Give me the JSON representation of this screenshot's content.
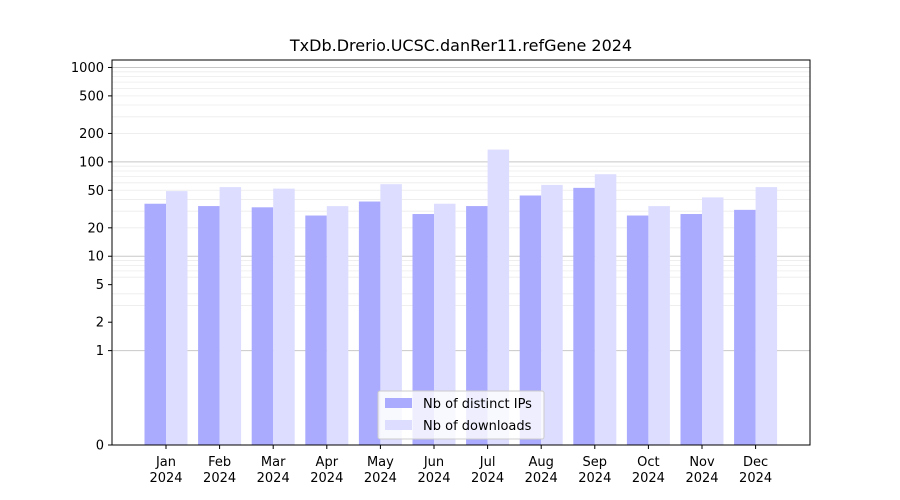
{
  "chart_data": {
    "type": "bar",
    "title": "TxDb.Drerio.UCSC.danRer11.refGene 2024",
    "xlabel": "",
    "ylabel": "",
    "yscale": "symlog",
    "ylim": [
      0,
      1200
    ],
    "yticks": [
      0,
      1,
      2,
      5,
      10,
      20,
      50,
      100,
      200,
      500,
      1000
    ],
    "ytick_labels": [
      "0",
      "1",
      "2",
      "5",
      "10",
      "20",
      "50",
      "100",
      "200",
      "500",
      "1000"
    ],
    "grid": true,
    "legend_position": "bottom-center",
    "categories": [
      "Jan",
      "Feb",
      "Mar",
      "Apr",
      "May",
      "Jun",
      "Jul",
      "Aug",
      "Sep",
      "Oct",
      "Nov",
      "Dec"
    ],
    "category_years": [
      "2024",
      "2024",
      "2024",
      "2024",
      "2024",
      "2024",
      "2024",
      "2024",
      "2024",
      "2024",
      "2024",
      "2024"
    ],
    "series": [
      {
        "name": "Nb of distinct IPs",
        "color": "#aaaaff",
        "values": [
          36,
          34,
          33,
          27,
          38,
          28,
          34,
          44,
          53,
          27,
          28,
          31
        ]
      },
      {
        "name": "Nb of downloads",
        "color": "#ddddff",
        "values": [
          49,
          54,
          52,
          34,
          58,
          36,
          135,
          57,
          74,
          34,
          42,
          54
        ]
      }
    ]
  }
}
